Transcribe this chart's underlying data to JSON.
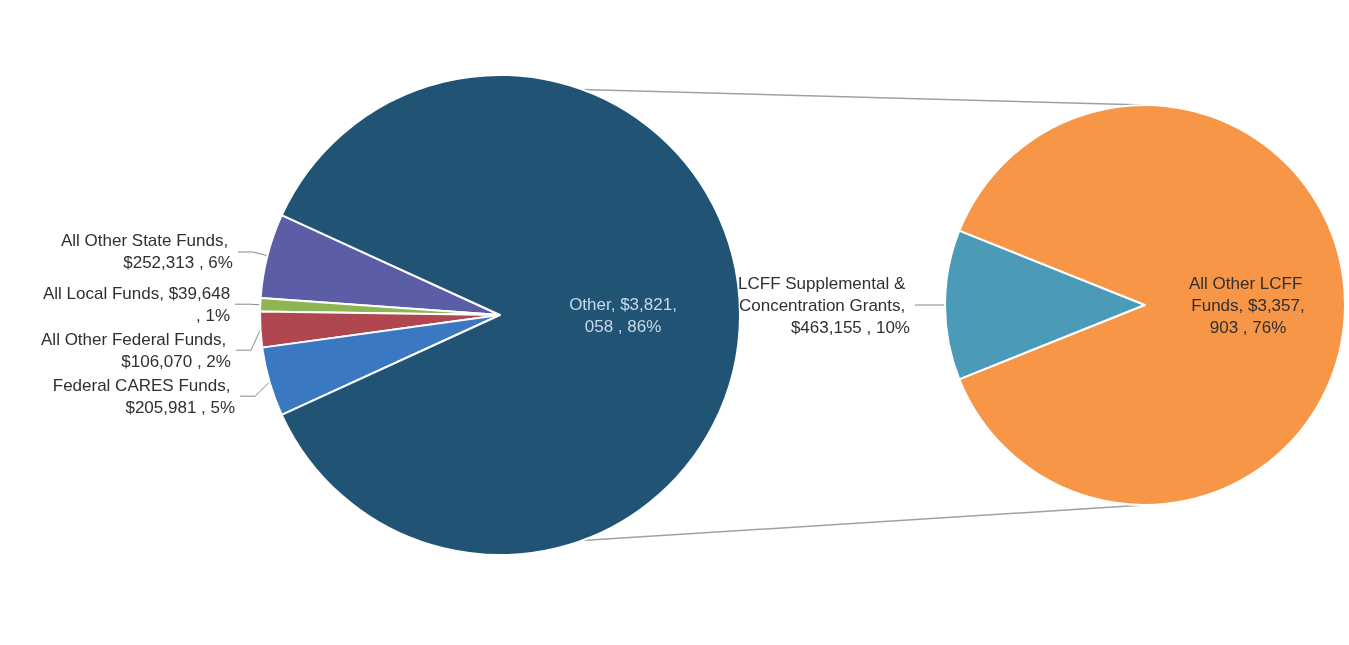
{
  "chart_data": [
    {
      "type": "pie",
      "categories": [
        "All Other State Funds",
        "All Local Funds",
        "All Other Federal Funds",
        "Federal CARES Funds",
        "Other"
      ],
      "values": [
        252313,
        39648,
        106070,
        205981,
        3821058
      ],
      "colors": [
        "#5b5ea6",
        "#8db552",
        "#b0464f",
        "#3a78c2",
        "#215374"
      ],
      "value_labels": [
        ", $252,313 , 6%",
        ", $39,648 , 1%",
        ", $106,070 , 2%",
        ", $205,981 , 5%",
        ", $3,821,058 , 86%"
      ]
    },
    {
      "type": "pie",
      "categories": [
        "LCFF Supplemental & Concentration Grants",
        "All Other LCFF Funds"
      ],
      "values": [
        463155,
        3357903
      ],
      "colors": [
        "#4a9ab8",
        "#f79646"
      ],
      "value_labels": [
        ", $463,155 , 10%",
        ", $3,357,903 , 76%"
      ]
    }
  ]
}
